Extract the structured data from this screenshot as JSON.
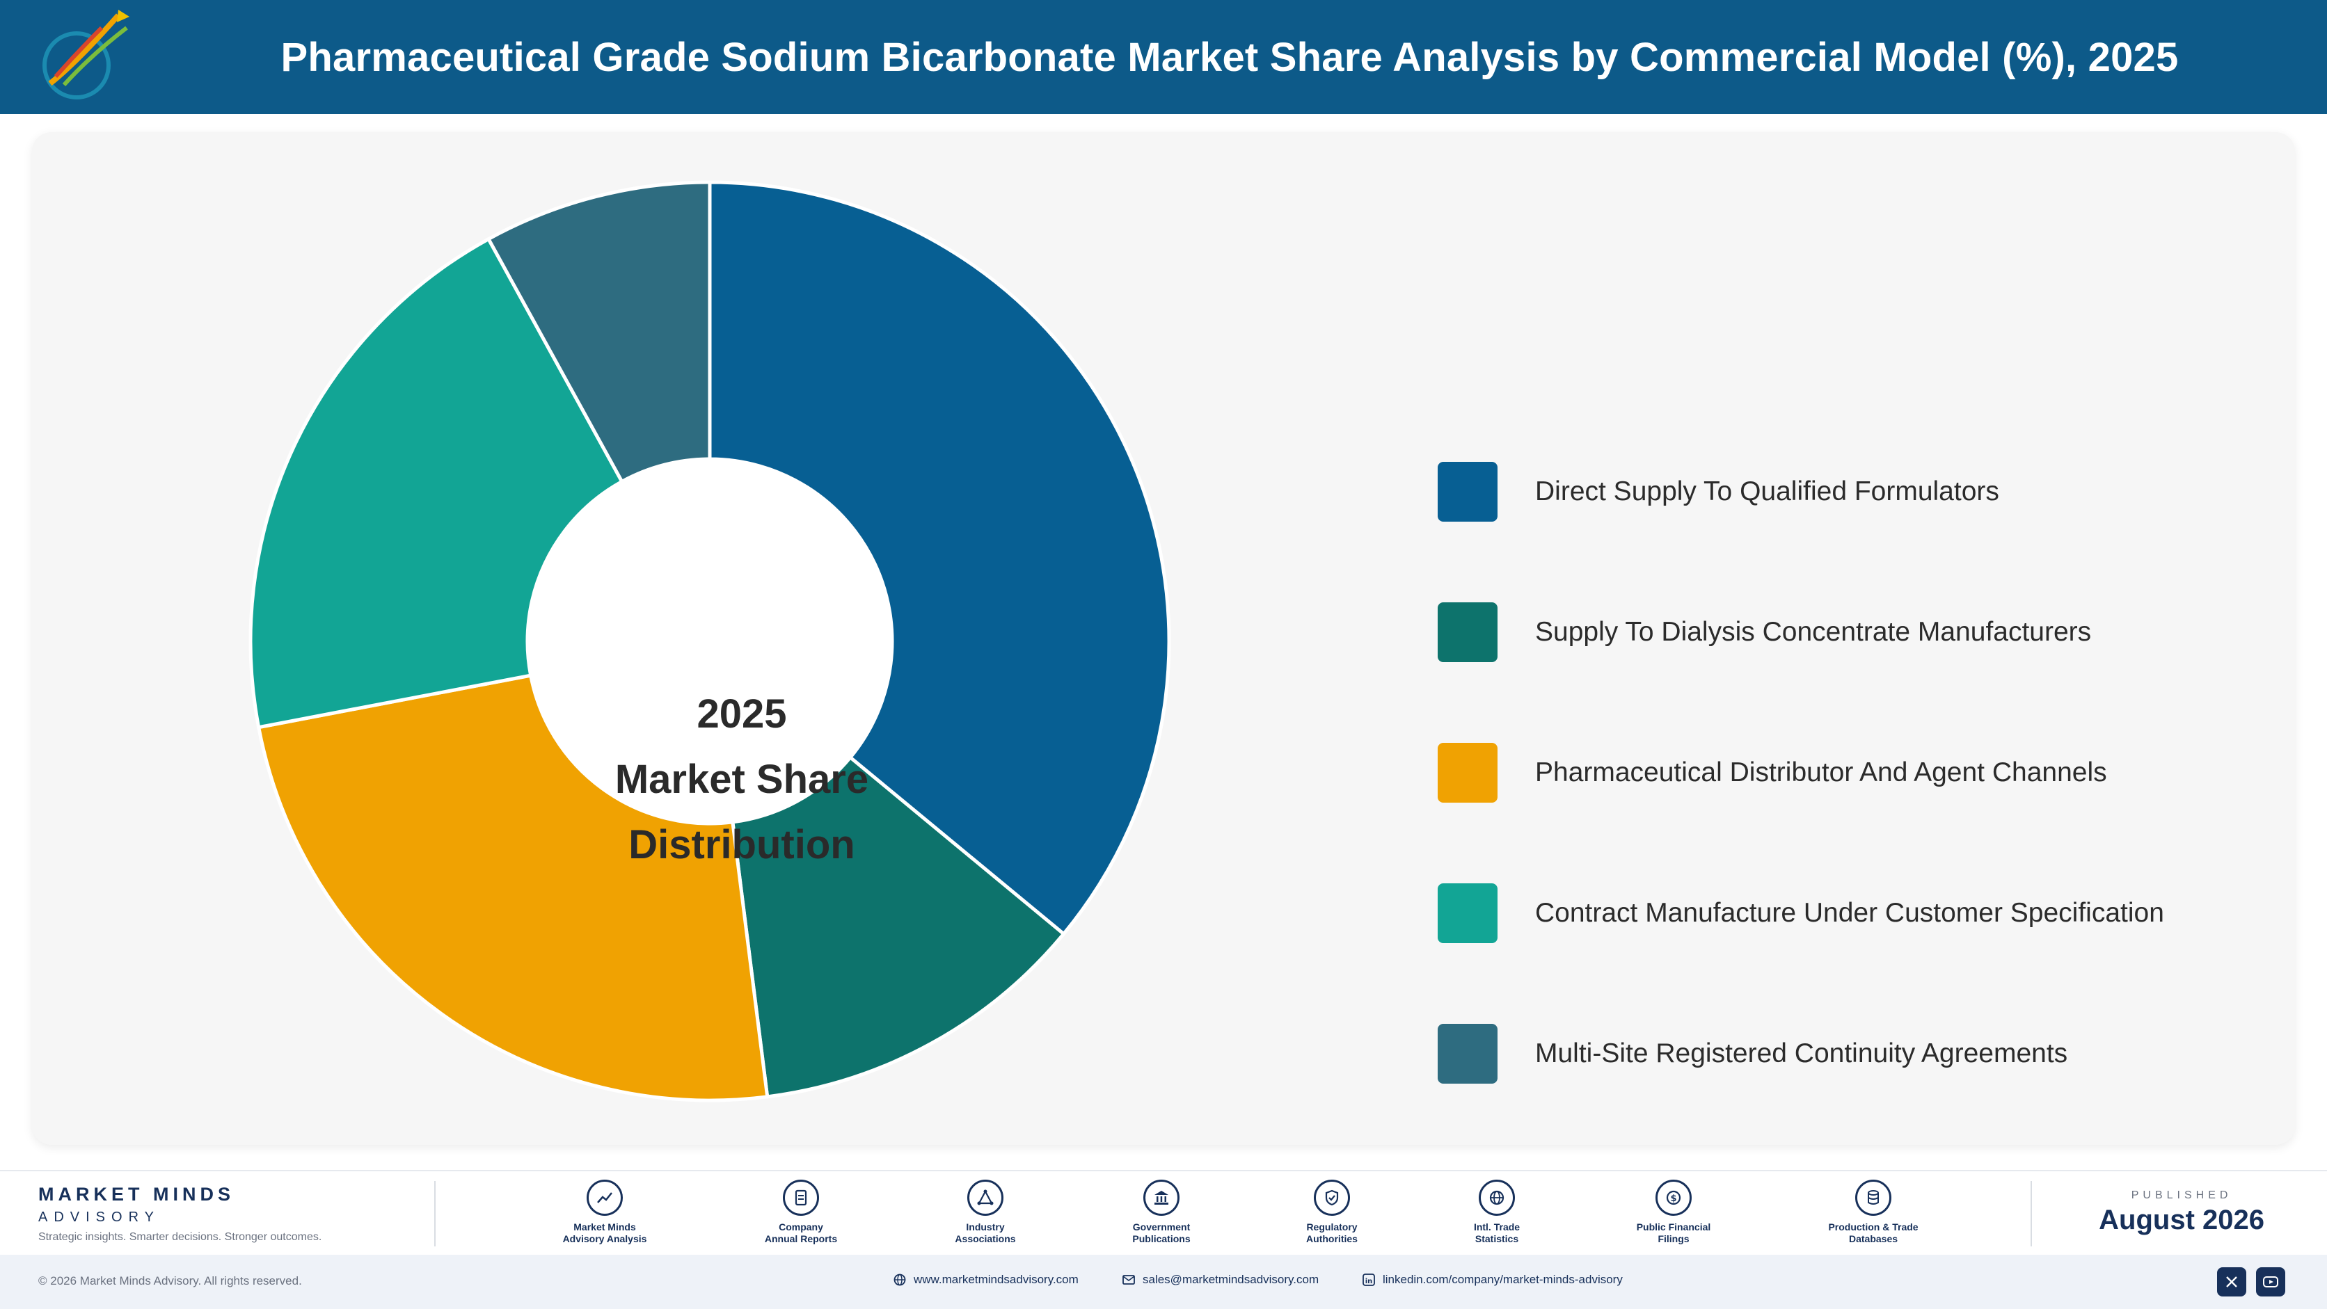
{
  "header": {
    "title": "Pharmaceutical Grade Sodium Bicarbonate Market Share Analysis by Commercial Model (%), 2025"
  },
  "chart_data": {
    "type": "pie",
    "subtype": "donut",
    "title": "Pharmaceutical Grade Sodium Bicarbonate Market Share Analysis by Commercial Model (%), 2025",
    "center_label": [
      "2025",
      "Market Share",
      "Distribution"
    ],
    "legend_position": "right",
    "categories": [
      "Direct Supply To Qualified Formulators",
      "Supply To Dialysis Concentrate Manufacturers",
      "Pharmaceutical Distributor And Agent Channels",
      "Contract Manufacture Under Customer Specification",
      "Multi-Site Registered Continuity Agreements"
    ],
    "values": [
      36,
      12,
      24,
      20,
      8
    ],
    "colors": [
      "#075f93",
      "#0d736c",
      "#f0a202",
      "#12a595",
      "#2e6c80"
    ]
  },
  "footer": {
    "brand_name": "MARKET MINDS",
    "brand_sub": "ADVISORY",
    "brand_tagline": "Strategic insights. Smarter decisions. Stronger outcomes.",
    "sources": [
      {
        "label": "Market Minds\nAdvisory Analysis",
        "icon": "chart-line-icon"
      },
      {
        "label": "Company\nAnnual Reports",
        "icon": "document-icon"
      },
      {
        "label": "Industry\nAssociations",
        "icon": "network-icon"
      },
      {
        "label": "Government\nPublications",
        "icon": "government-building-icon"
      },
      {
        "label": "Regulatory\nAuthorities",
        "icon": "shield-check-icon"
      },
      {
        "label": "Intl. Trade\nStatistics",
        "icon": "globe-icon"
      },
      {
        "label": "Public Financial\nFilings",
        "icon": "dollar-coin-icon"
      },
      {
        "label": "Production & Trade\nDatabases",
        "icon": "database-icon"
      }
    ],
    "published_label": "PUBLISHED",
    "published_date": "August 2026",
    "copyright": "© 2026 Market Minds Advisory. All rights reserved.",
    "website": "www.marketmindsadvisory.com",
    "email": "sales@marketmindsadvisory.com",
    "linkedin": "linkedin.com/company/market-minds-advisory",
    "social": [
      "x-icon",
      "youtube-icon"
    ]
  }
}
